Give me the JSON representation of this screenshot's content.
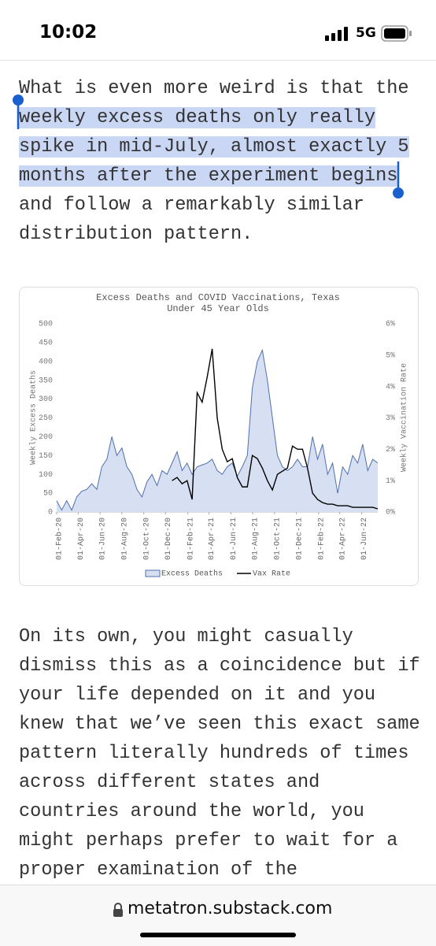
{
  "status_bar": {
    "time": "10:02",
    "network": "5G"
  },
  "paragraph_1": {
    "text_before": "What is even more weird is that the ",
    "highlighted": "weekly excess deaths only really spike in mid-July, almost exactly 5 months after the experiment begins",
    "text_after": " and follow a remarkably similar distribution pattern."
  },
  "paragraph_2": "On its own, you might casually dismiss this as a coincidence but if your life depended on it and you knew that we’ve seen this exact same pattern literally hundreds of times across different states and countries around the world, you might perhaps prefer to wait for a proper examination of the",
  "chart_data": {
    "type": "area",
    "title": "Excess Deaths and COVID Vaccinations, Texas",
    "subtitle": "Under 45 Year Olds",
    "y_label": "Weekly Excess Deaths",
    "y2_label": "Weekly Vaccination Rate",
    "x": [
      "2020-02-01",
      "2020-02-15",
      "2020-02-29",
      "2020-03-14",
      "2020-03-28",
      "2020-04-11",
      "2020-04-25",
      "2020-05-09",
      "2020-05-23",
      "2020-06-06",
      "2020-06-20",
      "2020-07-04",
      "2020-07-18",
      "2020-08-01",
      "2020-08-15",
      "2020-08-29",
      "2020-09-12",
      "2020-09-26",
      "2020-10-10",
      "2020-10-24",
      "2020-11-07",
      "2020-11-21",
      "2020-12-05",
      "2020-12-19",
      "2021-01-02",
      "2021-01-16",
      "2021-01-30",
      "2021-02-13",
      "2021-02-27",
      "2021-03-13",
      "2021-03-27",
      "2021-04-10",
      "2021-04-24",
      "2021-05-08",
      "2021-05-22",
      "2021-06-05",
      "2021-06-19",
      "2021-07-03",
      "2021-07-17",
      "2021-07-31",
      "2021-08-14",
      "2021-08-28",
      "2021-09-11",
      "2021-09-25",
      "2021-10-09",
      "2021-10-23",
      "2021-11-06",
      "2021-11-20",
      "2021-12-04",
      "2021-12-18",
      "2022-01-01",
      "2022-01-15",
      "2022-01-29",
      "2022-02-12",
      "2022-02-26",
      "2022-03-12",
      "2022-03-26",
      "2022-04-09",
      "2022-04-23",
      "2022-05-07",
      "2022-05-21",
      "2022-06-04",
      "2022-06-18",
      "2022-07-02",
      "2022-07-16"
    ],
    "xlim": [
      "2020-02-01",
      "2022-07-16"
    ],
    "xticks": [
      {
        "value": "2020-02-01",
        "label": "01-Feb-20"
      },
      {
        "value": "2020-04-01",
        "label": "01-Apr-20"
      },
      {
        "value": "2020-06-01",
        "label": "01-Jun-20"
      },
      {
        "value": "2020-08-01",
        "label": "01-Aug-20"
      },
      {
        "value": "2020-10-01",
        "label": "01-Oct-20"
      },
      {
        "value": "2020-12-01",
        "label": "01-Dec-20"
      },
      {
        "value": "2021-02-01",
        "label": "01-Feb-21"
      },
      {
        "value": "2021-04-01",
        "label": "01-Apr-21"
      },
      {
        "value": "2021-06-01",
        "label": "01-Jun-21"
      },
      {
        "value": "2021-08-01",
        "label": "01-Aug-21"
      },
      {
        "value": "2021-10-01",
        "label": "01-Oct-21"
      },
      {
        "value": "2021-12-01",
        "label": "01-Dec-21"
      },
      {
        "value": "2022-02-01",
        "label": "01-Feb-22"
      },
      {
        "value": "2022-04-01",
        "label": "01-Apr-22"
      },
      {
        "value": "2022-06-01",
        "label": "01-Jun-22"
      }
    ],
    "ylim": [
      0,
      500
    ],
    "yticks": [
      0,
      50,
      100,
      150,
      200,
      250,
      300,
      350,
      400,
      450,
      500
    ],
    "y2lim": [
      0,
      6
    ],
    "y2ticks": [
      {
        "value": 0,
        "label": "0%"
      },
      {
        "value": 1,
        "label": "1%"
      },
      {
        "value": 2,
        "label": "2%"
      },
      {
        "value": 3,
        "label": "3%"
      },
      {
        "value": 4,
        "label": "4%"
      },
      {
        "value": 5,
        "label": "5%"
      },
      {
        "value": 6,
        "label": "6%"
      }
    ],
    "grid": false,
    "legend": "bottom",
    "series": [
      {
        "name": "Excess Deaths",
        "type": "area",
        "color": "#4f6fad",
        "fill": "#d6e0f2",
        "values": [
          30,
          5,
          30,
          5,
          40,
          55,
          60,
          75,
          60,
          120,
          140,
          200,
          150,
          170,
          120,
          100,
          60,
          40,
          80,
          100,
          70,
          110,
          100,
          130,
          160,
          110,
          130,
          100,
          120,
          125,
          130,
          140,
          110,
          100,
          120,
          130,
          95,
          120,
          150,
          330,
          400,
          430,
          350,
          250,
          150,
          120,
          110,
          120,
          140,
          120,
          120,
          200,
          140,
          180,
          100,
          130,
          50,
          120,
          100,
          150,
          130,
          180,
          110,
          140,
          130
        ]
      },
      {
        "name": "Vax Rate",
        "type": "line",
        "axis": "y2",
        "color": "#000000",
        "values": [
          null,
          null,
          null,
          null,
          null,
          null,
          null,
          null,
          null,
          null,
          null,
          null,
          null,
          null,
          null,
          null,
          null,
          null,
          null,
          null,
          null,
          null,
          null,
          1.0,
          1.1,
          0.9,
          1.0,
          0.4,
          3.8,
          3.5,
          4.3,
          5.2,
          3.0,
          2.0,
          1.6,
          1.7,
          1.1,
          0.8,
          0.8,
          1.8,
          1.7,
          1.4,
          1.0,
          0.7,
          1.2,
          1.3,
          1.4,
          2.1,
          2.0,
          2.0,
          1.4,
          0.6,
          0.4,
          0.3,
          0.25,
          0.25,
          0.2,
          0.2,
          0.2,
          0.15,
          0.15,
          0.15,
          0.15,
          0.15,
          0.1
        ]
      }
    ]
  },
  "browser": {
    "url": "metatron.substack.com"
  }
}
